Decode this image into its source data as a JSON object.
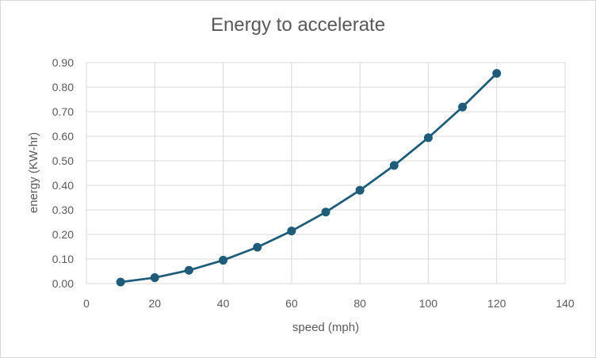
{
  "chart_data": {
    "type": "scatter",
    "title": "Energy to accelerate",
    "xlabel": "speed (mph)",
    "ylabel": "energy (KW-hr)",
    "xlim": [
      0,
      140
    ],
    "ylim": [
      0,
      0.9
    ],
    "xticks": [
      "0",
      "20",
      "40",
      "60",
      "80",
      "100",
      "120",
      "140"
    ],
    "yticks": [
      "0.00",
      "0.10",
      "0.20",
      "0.30",
      "0.40",
      "0.50",
      "0.60",
      "0.70",
      "0.80",
      "0.90"
    ],
    "grid": true,
    "x": [
      10,
      20,
      30,
      40,
      50,
      60,
      70,
      80,
      90,
      100,
      110,
      120
    ],
    "y": [
      0.006,
      0.024,
      0.054,
      0.095,
      0.148,
      0.214,
      0.291,
      0.38,
      0.481,
      0.594,
      0.719,
      0.856
    ],
    "color": "#1f5c7a"
  }
}
